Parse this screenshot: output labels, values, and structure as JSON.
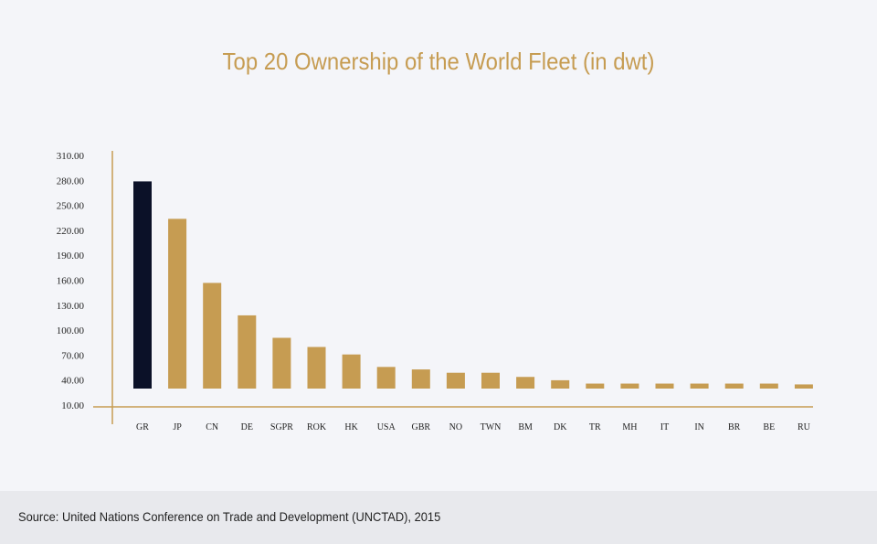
{
  "chart_data": {
    "type": "bar",
    "title": "Top 20 Ownership of the World Fleet (in dwt)",
    "xlabel": "",
    "ylabel": "",
    "y_tick_labels": [
      "10.00",
      "40.00",
      "70.00",
      "100.00",
      "130.00",
      "160.00",
      "190.00",
      "220.00",
      "250.00",
      "280.00",
      "310.00"
    ],
    "ylim": [
      10,
      310
    ],
    "categories": [
      "GR",
      "JP",
      "CN",
      "DE",
      "SGPR",
      "ROK",
      "HK",
      "USA",
      "GBR",
      "NO",
      "TWN",
      "BM",
      "DK",
      "TR",
      "MH",
      "IT",
      "IN",
      "BR",
      "BE",
      "RU"
    ],
    "values": [
      279,
      234,
      157,
      118,
      91,
      80,
      71,
      56,
      53,
      49,
      49,
      44,
      40,
      36,
      36,
      36,
      36,
      36,
      36,
      35
    ],
    "highlight_category": "GR",
    "colors": {
      "bar": "#c69c52",
      "highlight": "#0b1128",
      "axis": "#c69c52",
      "title": "#c69c52"
    },
    "grid": false
  },
  "footer": {
    "source": "Source: United Nations Conference on Trade and Development (UNCTAD), 2015"
  }
}
